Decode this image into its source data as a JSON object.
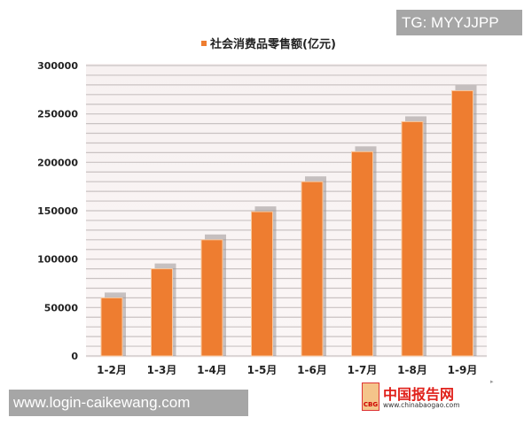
{
  "chart_data": {
    "type": "bar",
    "legend": "社会消费品零售额(亿元)",
    "legend_placement": "top",
    "categories": [
      "1-2月",
      "1-3月",
      "1-4月",
      "1-5月",
      "1-6月",
      "1-7月",
      "1-8月",
      "1-9月"
    ],
    "values": [
      60000,
      90000,
      120000,
      149000,
      180000,
      211000,
      242000,
      274000
    ],
    "ylim": [
      0,
      300000
    ],
    "yticks": [
      "0",
      "50000",
      "100000",
      "150000",
      "200000",
      "250000",
      "300000"
    ],
    "grid": true,
    "bar_color": "#ee7d30"
  },
  "watermarks": {
    "top": "TG: MYYJJPP",
    "bottom": "www.login-caikewang.com"
  },
  "logo": {
    "name": "中国报告网",
    "url": "www.chinabaogao.com",
    "mark": "CBG"
  }
}
